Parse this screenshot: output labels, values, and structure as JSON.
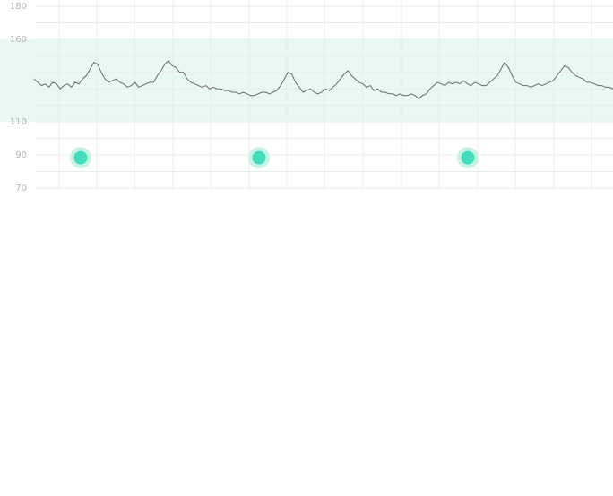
{
  "chart_data": {
    "type": "line",
    "title": "",
    "xlabel": "",
    "ylabel": "",
    "ylim": [
      70,
      180
    ],
    "yticks": [
      180,
      160,
      110,
      90,
      70
    ],
    "grid": true,
    "band": {
      "from": 110,
      "to": 160,
      "color": "#e9f8f4"
    },
    "series": [
      {
        "color": "#6b6b6b",
        "values": [
          136,
          134,
          132,
          133,
          131,
          134,
          133,
          130,
          132,
          133,
          131,
          134,
          133,
          136,
          138,
          142,
          146,
          145,
          140,
          136,
          134,
          135,
          136,
          134,
          133,
          131,
          132,
          134,
          131,
          132,
          133,
          134,
          134,
          138,
          141,
          145,
          147,
          144,
          143,
          140,
          140,
          136,
          134,
          133,
          132,
          131,
          132,
          130,
          131,
          130,
          130,
          129,
          129,
          128,
          128,
          127,
          128,
          127,
          126,
          126,
          127,
          128,
          128,
          127,
          128,
          129,
          132,
          136,
          140,
          139,
          134,
          131,
          128,
          129,
          130,
          128,
          127,
          128,
          130,
          129,
          131,
          133,
          136,
          139,
          141,
          138,
          136,
          134,
          133,
          131,
          132,
          129,
          130,
          128,
          128,
          127,
          127,
          126,
          127,
          126,
          126,
          127,
          126,
          124,
          126,
          127,
          130,
          132,
          134,
          133,
          132,
          134,
          133,
          134,
          133,
          135,
          133,
          132,
          134,
          133,
          132,
          132,
          134,
          136,
          138,
          142,
          146,
          143,
          138,
          134,
          133,
          132,
          132,
          131,
          132,
          133,
          132,
          133,
          134,
          135,
          138,
          141,
          144,
          143,
          140,
          138,
          137,
          136,
          134,
          134,
          133,
          132,
          132,
          131,
          131,
          130
        ]
      }
    ],
    "markers": {
      "color": "#45dcbb",
      "halo": "#c7f2e6",
      "points": [
        {
          "y": 90
        },
        {
          "y": 90
        },
        {
          "y": 90
        }
      ]
    }
  }
}
